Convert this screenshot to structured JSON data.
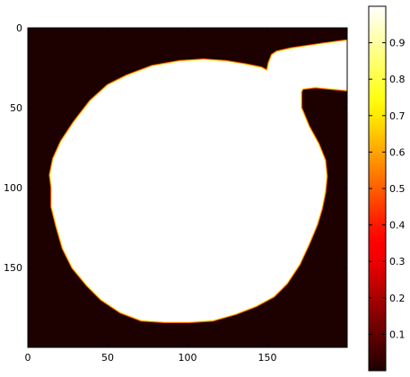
{
  "chart_data": {
    "type": "heatmap",
    "title": "",
    "xlabel": "",
    "ylabel": "",
    "colormap": "hot",
    "image_size": [
      200,
      200
    ],
    "xlim": [
      0,
      200
    ],
    "ylim": [
      200,
      0
    ],
    "xticks": [
      0,
      50,
      100,
      150
    ],
    "yticks": [
      0,
      50,
      100,
      150
    ],
    "colorbar": {
      "range": [
        0,
        1
      ],
      "ticks": [
        0.1,
        0.2,
        0.3,
        0.4,
        0.5,
        0.6,
        0.7,
        0.8,
        0.9
      ]
    },
    "background_value": 0.0,
    "blob_value": 1.0,
    "edge_value": 0.5,
    "blob_outline": [
      [
        15,
        100
      ],
      [
        14,
        92
      ],
      [
        16,
        82
      ],
      [
        21,
        71
      ],
      [
        29,
        59
      ],
      [
        39,
        46
      ],
      [
        50,
        36
      ],
      [
        62,
        30
      ],
      [
        78,
        24
      ],
      [
        95,
        21
      ],
      [
        110,
        20
      ],
      [
        124,
        21
      ],
      [
        136,
        23
      ],
      [
        146,
        25
      ],
      [
        150,
        27
      ],
      [
        151,
        22
      ],
      [
        153,
        17
      ],
      [
        156,
        15
      ],
      [
        165,
        13
      ],
      [
        185,
        10
      ],
      [
        200,
        8
      ],
      [
        200,
        39
      ],
      [
        190,
        38
      ],
      [
        180,
        37
      ],
      [
        172,
        38
      ],
      [
        171,
        40
      ],
      [
        171,
        50
      ],
      [
        176,
        62
      ],
      [
        182,
        73
      ],
      [
        186,
        83
      ],
      [
        187,
        93
      ],
      [
        186,
        103
      ],
      [
        184,
        113
      ],
      [
        181,
        123
      ],
      [
        176,
        135
      ],
      [
        170,
        148
      ],
      [
        162,
        160
      ],
      [
        154,
        168
      ],
      [
        143,
        174
      ],
      [
        130,
        179
      ],
      [
        116,
        183
      ],
      [
        101,
        184
      ],
      [
        86,
        184
      ],
      [
        71,
        183
      ],
      [
        58,
        178
      ],
      [
        46,
        170
      ],
      [
        37,
        161
      ],
      [
        28,
        150
      ],
      [
        22,
        138
      ],
      [
        18,
        124
      ],
      [
        15,
        112
      ]
    ]
  }
}
